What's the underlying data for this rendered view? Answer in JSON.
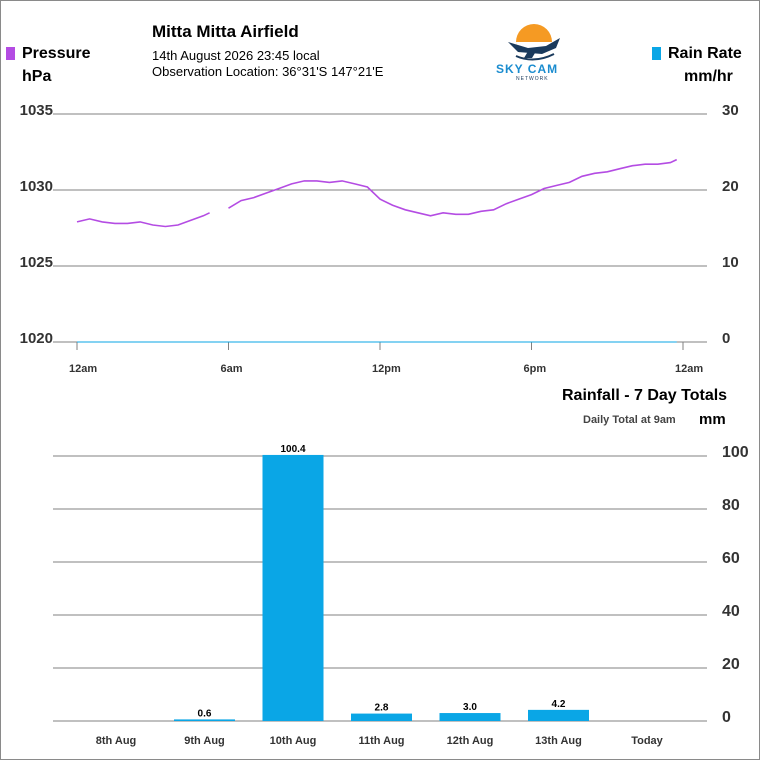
{
  "header": {
    "station": "Mitta Mitta Airfield",
    "datetime": "14th August 2026  23:45 local",
    "location": "Observation Location: 36°31'S 147°21'E"
  },
  "logo": {
    "name": "SKY CAM",
    "subtitle": "NETWORK",
    "icon": "plane-sun-logo-icon"
  },
  "colors": {
    "pressure": "#b44ce3",
    "rain": "#0aa6e6",
    "grid": "#808080",
    "axis_text": "#333333"
  },
  "legend": {
    "pressure_label": "Pressure",
    "pressure_unit": "hPa",
    "rain_label": "Rain Rate",
    "rain_unit": "mm/hr"
  },
  "rain_section": {
    "title": "Rainfall - 7 Day Totals",
    "subtitle": "Daily Total at 9am",
    "unit": "mm"
  },
  "chart_data": [
    {
      "type": "line",
      "series": [
        {
          "name": "Pressure",
          "x": [
            0,
            0.5,
            1,
            1.5,
            2,
            2.5,
            3,
            3.5,
            4,
            4.5,
            5,
            5.25,
            5.5,
            6,
            6.5,
            7,
            7.5,
            8,
            8.5,
            9,
            9.5,
            10,
            10.5,
            11,
            11.5,
            12,
            12.5,
            13,
            13.5,
            14,
            14.5,
            15,
            15.5,
            16,
            16.5,
            17,
            17.5,
            18,
            18.5,
            19,
            19.5,
            20,
            20.5,
            21,
            21.5,
            22,
            22.5,
            23,
            23.5,
            23.75
          ],
          "y": [
            1027.9,
            1028.1,
            1027.9,
            1027.8,
            1027.8,
            1027.9,
            1027.7,
            1027.6,
            1027.7,
            1028.0,
            1028.3,
            1028.5,
            null,
            1028.8,
            1029.3,
            1029.5,
            1029.8,
            1030.1,
            1030.4,
            1030.6,
            1030.6,
            1030.5,
            1030.6,
            1030.4,
            1030.2,
            1029.4,
            1029.0,
            1028.7,
            1028.5,
            1028.3,
            1028.5,
            1028.4,
            1028.4,
            1028.6,
            1028.7,
            1029.1,
            1029.4,
            1029.7,
            1030.1,
            1030.3,
            1030.5,
            1030.9,
            1031.1,
            1031.2,
            1031.4,
            1031.6,
            1031.7,
            1031.7,
            1031.8,
            1032.0
          ]
        },
        {
          "name": "Rain Rate",
          "x": [
            0,
            23.75
          ],
          "y": [
            0,
            0
          ]
        }
      ],
      "x_ticks": [
        "12am",
        "6am",
        "12pm",
        "6pm",
        "12am"
      ],
      "y_left": {
        "label": "hPa",
        "ticks": [
          1020,
          1025,
          1030,
          1035
        ],
        "range": [
          1020,
          1035
        ]
      },
      "y_right": {
        "label": "mm/hr",
        "ticks": [
          0,
          10,
          20,
          30
        ],
        "range": [
          0,
          30
        ]
      },
      "x_range": [
        0,
        24
      ],
      "grid": true
    },
    {
      "type": "bar",
      "title": "Rainfall - 7 Day Totals",
      "ylabel": "mm",
      "categories": [
        "8th Aug",
        "9th Aug",
        "10th Aug",
        "11th Aug",
        "12th Aug",
        "13th Aug",
        "Today"
      ],
      "values": [
        null,
        0.6,
        100.4,
        2.8,
        3.0,
        4.2,
        null
      ],
      "value_labels": [
        "",
        "0.6",
        "100.4",
        "2.8",
        "3.0",
        "4.2",
        ""
      ],
      "y_ticks": [
        0,
        20,
        40,
        60,
        80,
        100
      ],
      "ylim": [
        0,
        100
      ],
      "grid": true
    }
  ]
}
